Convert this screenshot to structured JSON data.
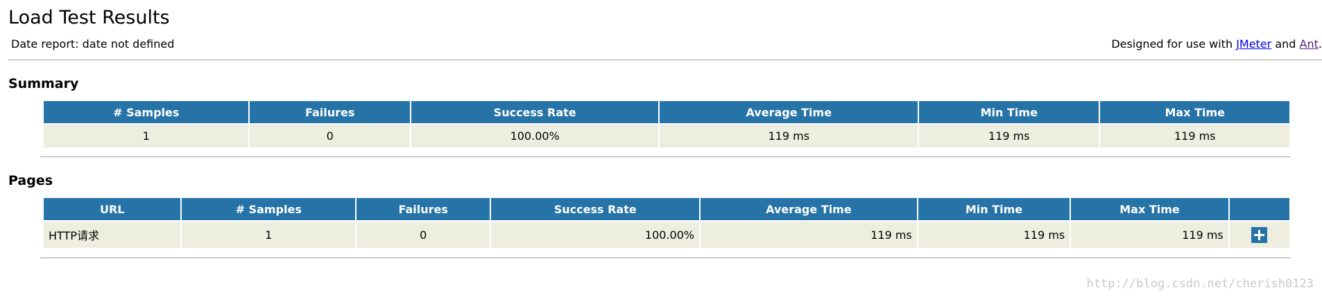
{
  "header": {
    "title": "Load Test Results",
    "date_report": "Date report: date not defined",
    "designed": {
      "prefix": "Designed for use with",
      "link1": "JMeter",
      "middle": "and",
      "link2": "Ant",
      "suffix": "."
    }
  },
  "summary": {
    "title": "Summary",
    "columns": [
      "# Samples",
      "Failures",
      "Success Rate",
      "Average Time",
      "Min Time",
      "Max Time"
    ],
    "rows": [
      [
        "1",
        "0",
        "100.00%",
        "119 ms",
        "119 ms",
        "119 ms"
      ]
    ]
  },
  "pages": {
    "title": "Pages",
    "columns": [
      "URL",
      "# Samples",
      "Failures",
      "Success Rate",
      "Average Time",
      "Min Time",
      "Max Time",
      ""
    ],
    "rows": [
      [
        "HTTP请求",
        "1",
        "0",
        "100.00%",
        "119 ms",
        "119 ms",
        "119 ms"
      ]
    ]
  },
  "watermark": "http://blog.csdn.net/cherish0123"
}
